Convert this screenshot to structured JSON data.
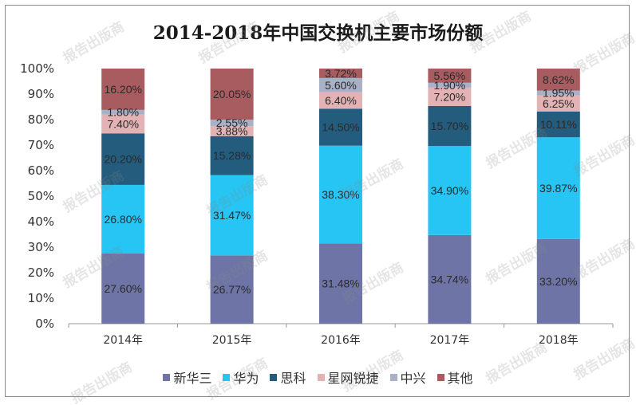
{
  "chart_data": {
    "type": "bar",
    "stacked": true,
    "title": "2014-2018年中国交换机主要市场份额",
    "categories": [
      "2014年",
      "2015年",
      "2016年",
      "2017年",
      "2018年"
    ],
    "y_ticks": [
      "0%",
      "10%",
      "20%",
      "30%",
      "40%",
      "50%",
      "60%",
      "70%",
      "80%",
      "90%",
      "100%"
    ],
    "ylim": [
      0,
      100
    ],
    "legend_position": "bottom",
    "series": [
      {
        "name": "新华三",
        "color": "#6e75a6",
        "values": [
          27.6,
          26.77,
          31.48,
          34.74,
          33.2
        ],
        "labels": [
          "27.60%",
          "26.77%",
          "31.48%",
          "34.74%",
          "33.20%"
        ]
      },
      {
        "name": "华为",
        "color": "#26c5f3",
        "values": [
          26.8,
          31.47,
          38.3,
          34.9,
          39.87
        ],
        "labels": [
          "26.80%",
          "31.47%",
          "38.30%",
          "34.90%",
          "39.87%"
        ]
      },
      {
        "name": "思科",
        "color": "#235c7c",
        "values": [
          20.2,
          15.28,
          14.5,
          15.7,
          10.11
        ],
        "labels": [
          "20.20%",
          "15.28%",
          "14.50%",
          "15.70%",
          "10.11%"
        ]
      },
      {
        "name": "星网锐捷",
        "color": "#e3b2b4",
        "values": [
          7.4,
          3.88,
          6.4,
          7.2,
          6.25
        ],
        "labels": [
          "7.40%",
          "3.88%",
          "6.40%",
          "7.20%",
          "6.25%"
        ]
      },
      {
        "name": "中兴",
        "color": "#a9b1c9",
        "values": [
          1.8,
          2.55,
          5.6,
          1.9,
          1.95
        ],
        "labels": [
          "1.80%",
          "2.55%",
          "5.60%",
          "1.90%",
          "1.95%"
        ]
      },
      {
        "name": "其他",
        "color": "#a85c5f",
        "values": [
          16.2,
          20.05,
          3.72,
          5.56,
          8.62
        ],
        "labels": [
          "16.20%",
          "20.05%",
          "3.72%",
          "5.56%",
          "8.62%"
        ]
      }
    ]
  },
  "watermark_text": "报告出版商"
}
